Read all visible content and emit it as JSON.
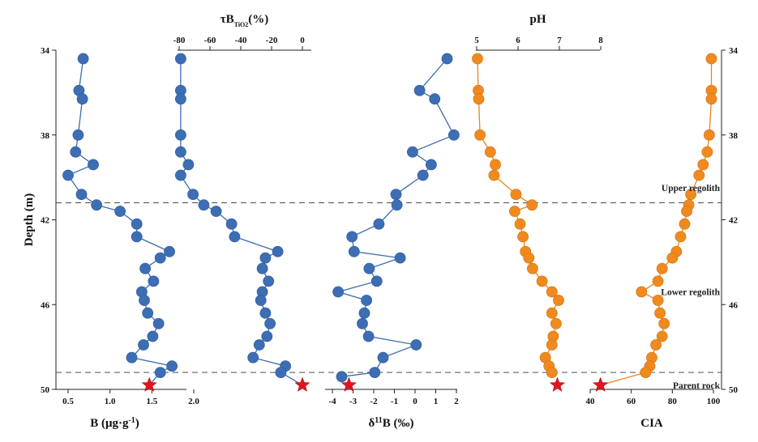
{
  "chart_data": {
    "type": "scatter",
    "depth_axis": {
      "label": "Depth (m)",
      "range": [
        34,
        50
      ],
      "inverted": true,
      "ticks": [
        "34",
        "38",
        "42",
        "46",
        "50"
      ],
      "right_ticks": [
        "34",
        "38",
        "42",
        "46",
        "50"
      ]
    },
    "zone_boundaries": [
      41.2,
      49.2
    ],
    "zones": [
      {
        "label": "Upper regolith",
        "depth": 40.5
      },
      {
        "label": "Lower regolith",
        "depth": 45.4
      },
      {
        "label": "Parent rock",
        "depth": 49.8
      }
    ],
    "panels": [
      {
        "id": "B",
        "axis_position": "bottom",
        "title_main": "B (μg·g",
        "title_sup": "-1",
        "title_end": ")",
        "range": [
          0.4,
          2.0
        ],
        "ticks": [
          "0.5",
          "1.0",
          "1.5",
          "2.0"
        ],
        "tick_values": [
          0.5,
          1.0,
          1.5,
          2.0
        ],
        "color": "#3d6eb4",
        "series": {
          "depth": [
            34.4,
            35.9,
            36.3,
            38.0,
            38.8,
            39.4,
            39.9,
            40.8,
            41.3,
            41.6,
            42.2,
            42.8,
            43.5,
            43.8,
            44.3,
            44.9,
            45.4,
            45.8,
            46.4,
            46.9,
            47.5,
            47.9,
            48.5,
            48.9,
            49.2
          ],
          "value": [
            0.68,
            0.63,
            0.67,
            0.62,
            0.59,
            0.8,
            0.5,
            0.66,
            0.84,
            1.12,
            1.32,
            1.32,
            1.71,
            1.6,
            1.42,
            1.52,
            1.38,
            1.41,
            1.45,
            1.58,
            1.51,
            1.4,
            1.26,
            1.74,
            1.6
          ]
        },
        "parent_rock": {
          "depth": 49.8,
          "value": 1.47
        },
        "point_labels": []
      },
      {
        "id": "tauB",
        "axis_position": "top",
        "title_main": "τB",
        "title_sub": "TiO2",
        "title_end": "(%)",
        "range": [
          -90,
          2
        ],
        "ticks": [
          "-80",
          "-60",
          "-40",
          "-20",
          "0"
        ],
        "tick_values": [
          -80,
          -60,
          -40,
          -20,
          0
        ],
        "color": "#3d6eb4",
        "series": {
          "depth": [
            34.4,
            35.9,
            36.3,
            38.0,
            38.8,
            39.4,
            39.9,
            40.8,
            41.3,
            41.6,
            42.2,
            42.8,
            43.5,
            43.8,
            44.3,
            44.9,
            45.4,
            45.8,
            46.4,
            46.9,
            47.5,
            47.9,
            48.5,
            48.9,
            49.2
          ],
          "value": [
            -79,
            -79,
            -79,
            -79,
            -79,
            -74,
            -79,
            -71,
            -64,
            -56,
            -46,
            -44,
            -16,
            -24,
            -26,
            -22,
            -26,
            -27,
            -24,
            -21,
            -23,
            -28,
            -32,
            -11,
            -14
          ]
        },
        "parent_rock": {
          "depth": 49.8,
          "value": 0
        },
        "point_labels": []
      },
      {
        "id": "d11B",
        "axis_position": "bottom",
        "title_main": "δ",
        "title_sup": "11",
        "title_end": "B (‰)",
        "range": [
          -4.2,
          2.0
        ],
        "ticks": [
          "-4",
          "-3",
          "-2",
          "-1",
          "0",
          "1",
          "2"
        ],
        "tick_values": [
          -4,
          -3,
          -2,
          -1,
          0,
          1,
          2
        ],
        "color": "#3d6eb4",
        "series": {
          "depth": [
            34.4,
            35.9,
            36.3,
            38.0,
            38.8,
            39.4,
            39.9,
            40.8,
            41.3,
            42.2,
            42.8,
            43.5,
            43.8,
            44.3,
            44.9,
            45.4,
            45.8,
            46.4,
            46.9,
            47.5,
            47.9,
            48.5,
            49.2,
            49.4
          ],
          "value": [
            1.55,
            0.22,
            0.95,
            1.88,
            -0.12,
            0.78,
            0.38,
            -0.92,
            -0.88,
            -1.75,
            -3.05,
            -2.95,
            -0.72,
            -2.22,
            -1.85,
            -3.72,
            -2.35,
            -2.45,
            -2.55,
            -2.25,
            0.05,
            -1.55,
            -1.95,
            -3.55
          ]
        },
        "parent_rock": {
          "depth": 49.8,
          "value": -3.2
        },
        "point_labels": []
      },
      {
        "id": "pH",
        "axis_position": "top",
        "title_main": "pH",
        "range": [
          5,
          8
        ],
        "ticks": [
          "5",
          "6",
          "7",
          "8"
        ],
        "tick_values": [
          5,
          6,
          7,
          8
        ],
        "color": "#f08a1e",
        "series": {
          "depth": [
            34.4,
            35.9,
            36.3,
            38.0,
            38.8,
            39.4,
            39.9,
            40.8,
            41.3,
            41.6,
            42.2,
            42.8,
            43.5,
            43.8,
            44.3,
            44.9,
            45.4,
            45.8,
            46.4,
            46.9,
            47.5,
            47.9,
            48.5,
            48.9,
            49.2
          ],
          "value": [
            5.02,
            5.04,
            5.05,
            5.08,
            5.33,
            5.45,
            5.42,
            5.95,
            6.34,
            5.92,
            6.05,
            6.12,
            6.18,
            6.26,
            6.35,
            6.58,
            6.82,
            6.98,
            6.82,
            6.92,
            6.85,
            6.82,
            6.66,
            6.75,
            6.82
          ]
        },
        "parent_rock": {
          "depth": 49.8,
          "value": 6.95
        },
        "point_labels": []
      },
      {
        "id": "CIA",
        "axis_position": "bottom",
        "title_main": "CIA",
        "range": [
          40,
          100
        ],
        "ticks": [
          "40",
          "60",
          "80",
          "100"
        ],
        "tick_values": [
          40,
          60,
          80,
          100
        ],
        "color": "#f08a1e",
        "series": {
          "depth": [
            34.4,
            35.9,
            36.3,
            38.0,
            38.8,
            39.4,
            39.9,
            40.8,
            41.3,
            41.6,
            42.2,
            42.8,
            43.5,
            43.8,
            44.3,
            44.9,
            45.4,
            45.8,
            46.4,
            46.9,
            47.5,
            47.9,
            48.5,
            48.9,
            49.2
          ],
          "value": [
            99,
            99,
            99,
            98,
            97,
            95,
            93,
            89,
            88,
            87,
            86,
            84,
            82,
            80,
            75,
            73,
            65,
            73,
            74,
            76,
            75,
            72,
            70,
            69,
            67
          ]
        },
        "parent_rock": {
          "depth": 49.8,
          "value": 45
        },
        "point_labels": []
      }
    ]
  }
}
